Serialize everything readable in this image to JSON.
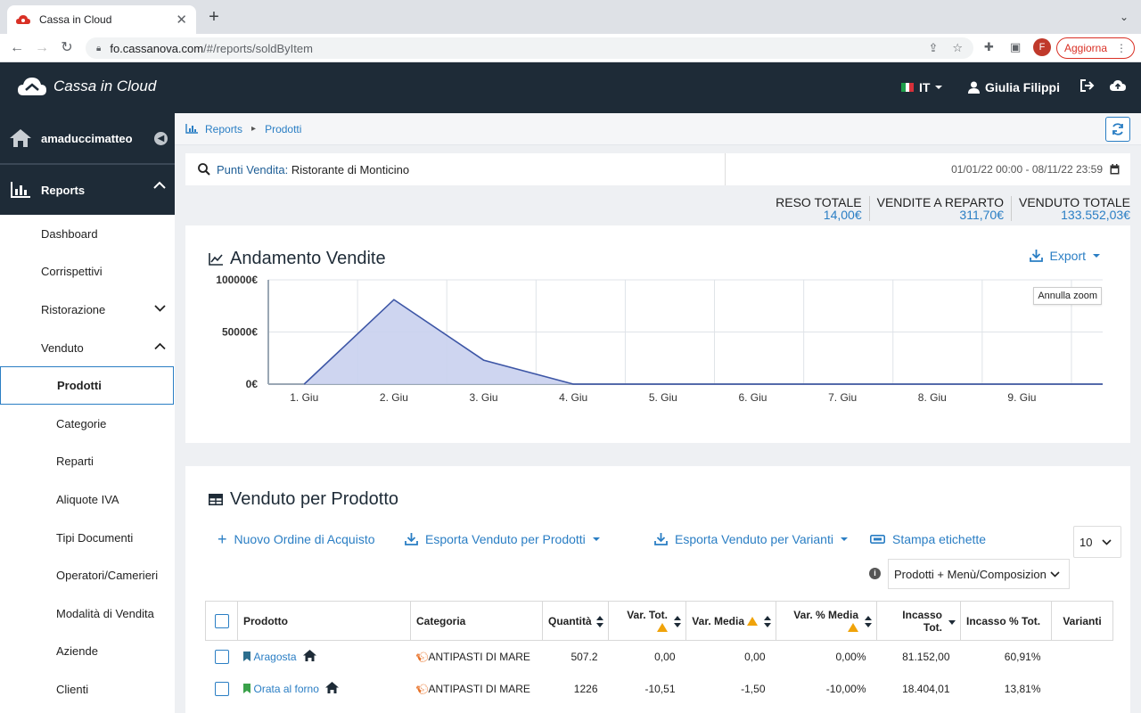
{
  "browser": {
    "tab_title": "Cassa in Cloud",
    "url_host": "fo.cassanova.com",
    "url_path": "/#/reports/soldByItem",
    "profile_initial": "F",
    "update_label": "Aggiorna"
  },
  "header": {
    "brand_main": "Cassa",
    "brand_light": " in Cloud",
    "language": "IT",
    "user_name": "Giulia Filippi"
  },
  "sidebar": {
    "user": "amaduccimatteo",
    "reports_label": "Reports",
    "items": [
      {
        "label": "Dashboard",
        "level": 1
      },
      {
        "label": "Corrispettivi",
        "level": 1
      },
      {
        "label": "Ristorazione",
        "level": 1,
        "chevron": "down"
      },
      {
        "label": "Venduto",
        "level": 1,
        "chevron": "up"
      },
      {
        "label": "Prodotti",
        "level": 2,
        "active": true
      },
      {
        "label": "Categorie",
        "level": 2
      },
      {
        "label": "Reparti",
        "level": 2
      },
      {
        "label": "Aliquote IVA",
        "level": 2
      },
      {
        "label": "Tipi Documenti",
        "level": 2
      },
      {
        "label": "Operatori/Camerieri",
        "level": 2
      },
      {
        "label": "Modalità di Vendita",
        "level": 2
      },
      {
        "label": "Aziende",
        "level": 2
      },
      {
        "label": "Clienti",
        "level": 2
      }
    ]
  },
  "breadcrumb": {
    "root": "Reports",
    "current": "Prodotti"
  },
  "filter": {
    "label": "Punti Vendita:",
    "value": "Ristorante di Monticino",
    "date_from": "01/01/22 00:00",
    "date_sep": " - ",
    "date_to": "08/11/22 23:59"
  },
  "totals": [
    {
      "label": "Reso Totale",
      "value": "14,00€"
    },
    {
      "label": "Vendite a Reparto",
      "value": "311,70€"
    },
    {
      "label": "Venduto Totale",
      "value": "133.552,03€"
    }
  ],
  "chart_card": {
    "title": "Andamento Vendite",
    "export_label": "Export",
    "zoom_reset_label": "Annulla zoom"
  },
  "chart_data": {
    "type": "area",
    "title": "Andamento Vendite",
    "categories": [
      "1. Giu",
      "2. Giu",
      "3. Giu",
      "4. Giu",
      "5. Giu",
      "6. Giu",
      "7. Giu",
      "8. Giu",
      "9. Giu"
    ],
    "values": [
      0,
      81000,
      23000,
      0,
      0,
      0,
      0,
      0,
      0
    ],
    "y_ticks": [
      "0€",
      "50000€",
      "100000€"
    ],
    "ylim": [
      0,
      100000
    ],
    "grid": true,
    "colors": {
      "line": "#3d56a6",
      "fill": "#c9d0ee"
    }
  },
  "table_card": {
    "title": "Venduto per Prodotto",
    "actions": {
      "new_order": "Nuovo Ordine di Acquisto",
      "export_products": "Esporta Venduto per Prodotti",
      "export_variants": "Esporta Venduto per Varianti",
      "print_labels": "Stampa etichette"
    },
    "page_size": "10",
    "filter_select": "Prodotti + Menù/Composizion",
    "columns": [
      "Prodotto",
      "Categoria",
      "Quantità",
      "Var. Tot.",
      "Var. Media",
      "Var. % Media",
      "Incasso Tot.",
      "Incasso % Tot.",
      "Varianti"
    ],
    "rows": [
      {
        "product": "Aragosta",
        "bookmark_color": "#2c6e8e",
        "category": "ANTIPASTI DI MARE",
        "qty": "507.2",
        "var_tot": "0,00",
        "var_media": "0,00",
        "var_pct": "0,00%",
        "incasso": "81.152,00",
        "incasso_pct": "60,91%"
      },
      {
        "product": "Orata al forno",
        "bookmark_color": "#3aa14a",
        "category": "ANTIPASTI DI MARE",
        "qty": "1226",
        "var_tot": "-10,51",
        "var_media": "-1,50",
        "var_pct": "-10,00%",
        "incasso": "18.404,01",
        "incasso_pct": "13,81%"
      }
    ]
  },
  "colors": {
    "accent": "#2a7ec4",
    "header_bg": "#1e2b37",
    "warning": "#f0a30a"
  }
}
